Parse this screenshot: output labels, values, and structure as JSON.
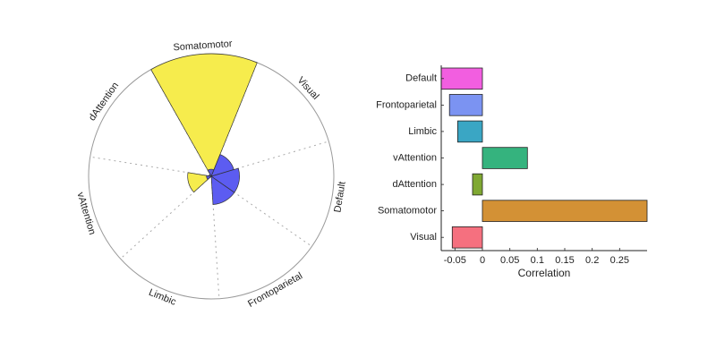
{
  "chart_data": [
    {
      "type": "polar-bar",
      "title": "",
      "sectors": [
        "Visual",
        "Default",
        "Frontoparietal",
        "Limbic",
        "vAttention",
        "dAttention",
        "Somatomotor"
      ],
      "series": [
        {
          "color": "#f5ea3a",
          "values": [
            0,
            0,
            0,
            0,
            0.1,
            0,
            0.52
          ]
        },
        {
          "color": "#4040ee",
          "values": [
            0.1,
            0.12,
            0.12,
            0,
            0.02,
            0.01,
            0.03
          ]
        }
      ],
      "grid": true
    },
    {
      "type": "bar",
      "orientation": "horizontal",
      "categories": [
        "Default",
        "Frontoparietal",
        "Limbic",
        "vAttention",
        "dAttention",
        "Somatomotor",
        "Visual"
      ],
      "values": [
        -0.075,
        -0.06,
        -0.045,
        0.082,
        -0.018,
        0.3,
        -0.055
      ],
      "colors": [
        "#f25ee0",
        "#7b93f2",
        "#3aa6c4",
        "#35b37e",
        "#7fa832",
        "#d39135",
        "#f5707f"
      ],
      "xlabel": "Correlation",
      "ylabel": "",
      "xticks": [
        "-0.05",
        "0",
        "0.05",
        "0.1",
        "0.15",
        "0.2",
        "0.25"
      ],
      "xtick_values": [
        -0.05,
        0,
        0.05,
        0.1,
        0.15,
        0.2,
        0.25
      ],
      "xlim": [
        -0.075,
        0.3
      ],
      "grid": false
    }
  ]
}
